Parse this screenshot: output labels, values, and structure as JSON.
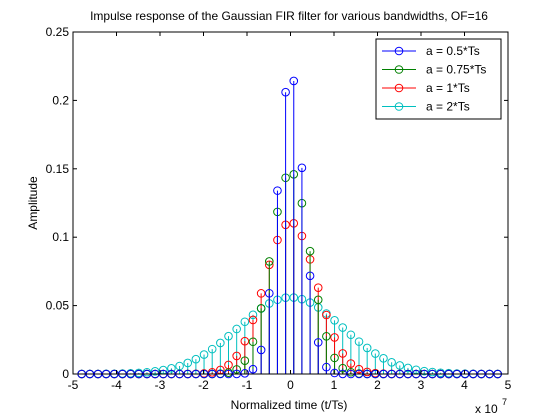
{
  "chart_data": {
    "type": "stem",
    "title": "Impulse response of the Gaussian FIR filter for various bandwidths, OF=16",
    "xlabel": "Normalized time (t/Ts)",
    "ylabel": "Amplitude",
    "x_multiplier_label": "x 10",
    "x_multiplier_exponent": "7",
    "xlim": [
      -5,
      5
    ],
    "ylim": [
      0,
      0.25
    ],
    "x_ticks": [
      -5,
      -4,
      -3,
      -2,
      -1,
      0,
      1,
      2,
      3,
      4,
      5
    ],
    "x_tick_labels": [
      "-5",
      "-4",
      "-3",
      "-2",
      "-1",
      "0",
      "1",
      "2",
      "3",
      "4",
      "5"
    ],
    "y_ticks": [
      0,
      0.05,
      0.1,
      0.15,
      0.2,
      0.25
    ],
    "y_tick_labels": [
      "0",
      "0.05",
      "0.1",
      "0.15",
      "0.2",
      "0.25"
    ],
    "grid": false,
    "legend_position": "top-right",
    "series": [
      {
        "name": "a = 0.5*Ts",
        "color": "#0000ff",
        "gaussian_std": 0.3,
        "peak": 0.221
      },
      {
        "name": "a = 0.75*Ts",
        "color": "#008000",
        "gaussian_std": 0.45,
        "peak": 0.148
      },
      {
        "name": "a = 1*Ts",
        "color": "#ff0000",
        "gaussian_std": 0.6,
        "peak": 0.111
      },
      {
        "name": "a = 2*Ts",
        "color": "#00bfbf",
        "gaussian_std": 1.2,
        "peak": 0.056
      }
    ],
    "sample_start": -4.8,
    "sample_end": 4.8,
    "sample_step": 0.1875
  }
}
